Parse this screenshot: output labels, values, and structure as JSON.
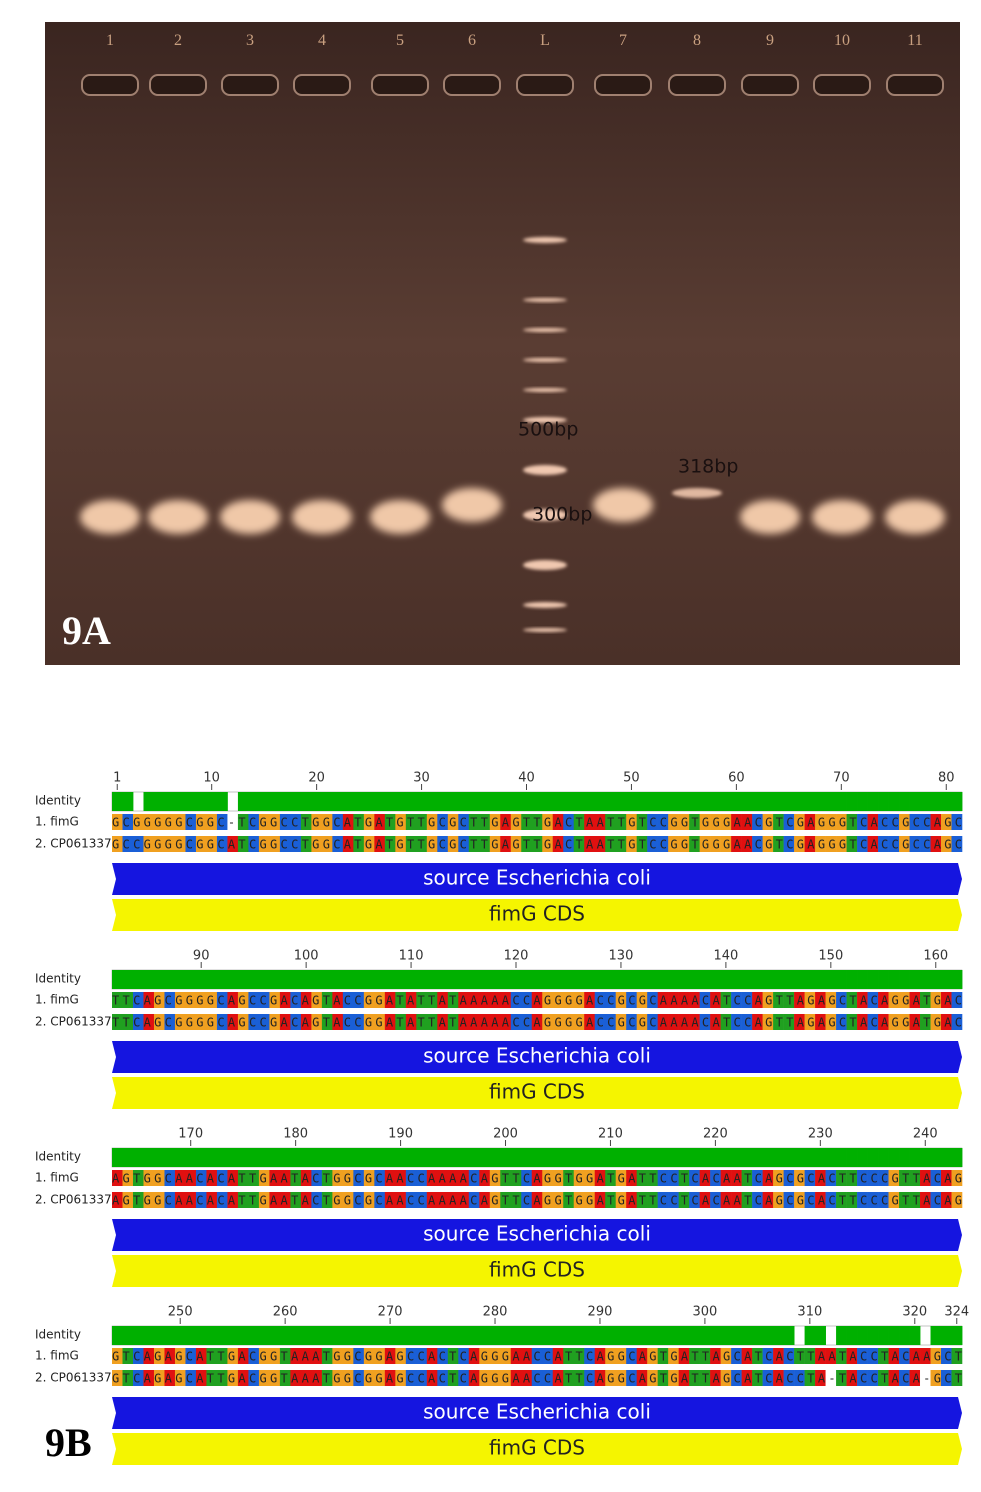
{
  "gel": {
    "lanes": [
      "1",
      "2",
      "3",
      "4",
      "5",
      "6",
      "L",
      "7",
      "8",
      "9",
      "10",
      "11"
    ],
    "band_labels": [
      "500bp",
      "318bp",
      "300bp"
    ],
    "panel_label": "9A"
  },
  "alignment": {
    "panel_label": "9B",
    "blocks": [
      {
        "identity_label": "Identity",
        "ruler": [
          1,
          10,
          20,
          30,
          40,
          50,
          60,
          70,
          80
        ],
        "sequences": [
          {
            "name": "1. fimG",
            "seq": "GCGGGGGCGGC-TCGGCCTGGCATGATGTTGCGCTTGAGTTGACTAATTGTCCGGTGGGAACGTCGAGGGTCACCGCCAGC"
          },
          {
            "name": "2. CP061337",
            "seq": "GCCGGGGCGGCATCGGCCTGGCATGATGTTGCGCTTGAGTTGACTAATTGTCCGGTGGGAACGTCGAGGGTCACCGCCAGC"
          }
        ],
        "features": [
          "source Escherichia coli",
          "fimG CDS"
        ]
      },
      {
        "identity_label": "Identity",
        "ruler": [
          90,
          100,
          110,
          120,
          130,
          140,
          150,
          160
        ],
        "sequences": [
          {
            "name": "1. fimG",
            "seq": "TTCAGCGGGGCAGCCGACAGTACCGGATATTATAAAAACCAGGGGACCGCGCAAAACATCCAGTTAGAGCTACAGGATGAC"
          },
          {
            "name": "2. CP061337",
            "seq": "TTCAGCGGGGCAGCCGACAGTACCGGATATTATAAAAACCAGGGGACCGCGCAAAACATCCAGTTAGAGCTACAGGATGAC"
          }
        ],
        "features": [
          "source Escherichia coli",
          "fimG CDS"
        ]
      },
      {
        "identity_label": "Identity",
        "ruler": [
          170,
          180,
          190,
          200,
          210,
          220,
          230,
          240
        ],
        "sequences": [
          {
            "name": "1. fimG",
            "seq": "AGTGGCAACACATTGAATACTGGCGCAACCAAAACAGTTCAGGTGGATGATTCCTCACAATCAGCGCACTTCCCGTTACAG"
          },
          {
            "name": "2. CP061337",
            "seq": "AGTGGCAACACATTGAATACTGGCGCAACCAAAACAGTTCAGGTGGATGATTCCTCACAATCAGCGCACTTCCCGTTACAG"
          }
        ],
        "features": [
          "source Escherichia coli",
          "fimG CDS"
        ]
      },
      {
        "identity_label": "Identity",
        "ruler": [
          250,
          260,
          270,
          280,
          290,
          300,
          310,
          320,
          324
        ],
        "sequences": [
          {
            "name": "1. fimG",
            "seq": "GTCAGAGCATTGACGGTAAATGGCGGAGCCACTCAGGGAACCATTCAGGCAGTGATTAGCATCACTTAATACCTACAAGCT"
          },
          {
            "name": "2. CP061337",
            "seq": "GTCAGAGCATTGACGGTAAATGGCGGAGCCACTCAGGGAACCATTCAGGCAGTGATTAGCATCACCTA-TACCTACA-GCT"
          }
        ],
        "features": [
          "source Escherichia coli",
          "fimG CDS"
        ]
      }
    ]
  }
}
